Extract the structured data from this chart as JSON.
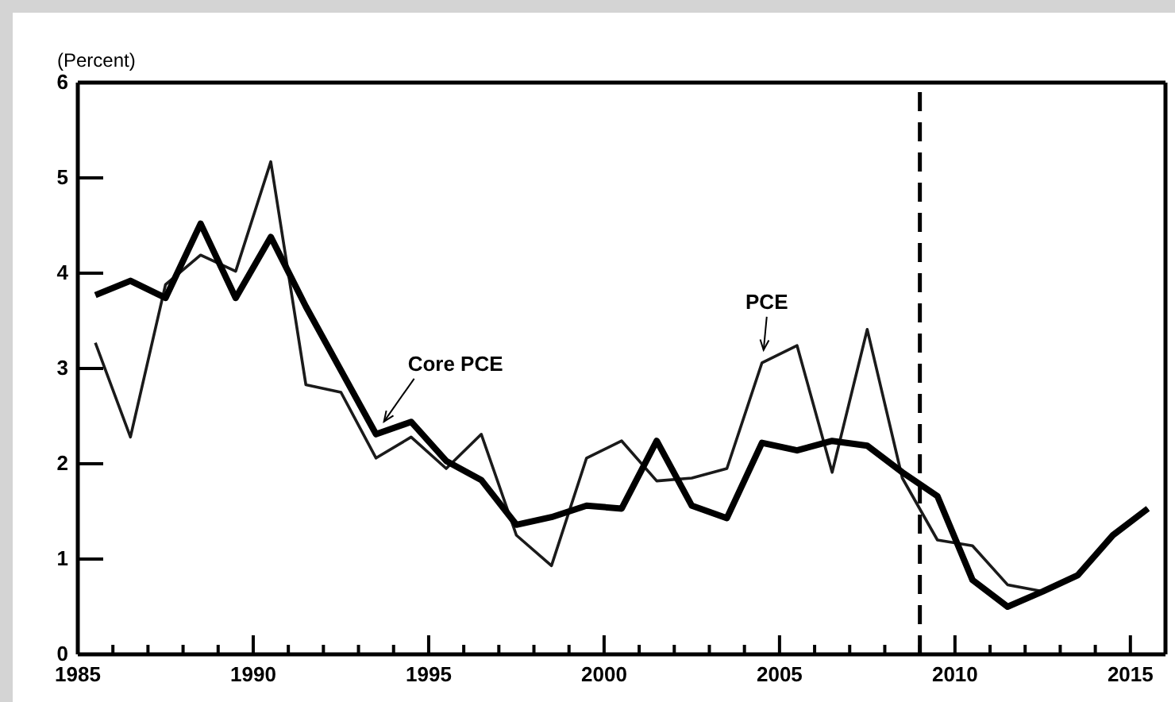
{
  "chart_data": {
    "type": "line",
    "ylabel": "(Percent)",
    "x": [
      1985.5,
      1986.5,
      1987.5,
      1988.5,
      1989.5,
      1990.5,
      1991.5,
      1992.5,
      1993.5,
      1994.5,
      1995.5,
      1996.5,
      1997.5,
      1998.5,
      1999.5,
      2000.5,
      2001.5,
      2002.5,
      2003.5,
      2004.5,
      2005.5,
      2006.5,
      2007.5,
      2008.5,
      2009.5,
      2010.5,
      2011.5,
      2012.5,
      2013.5,
      2014.5,
      2015.5
    ],
    "series": [
      {
        "name": "PCE",
        "color": "#1a1a1a",
        "values": [
          3.27,
          2.28,
          3.88,
          4.19,
          4.02,
          5.17,
          2.83,
          2.75,
          2.06,
          2.28,
          1.95,
          2.31,
          1.25,
          0.93,
          2.06,
          2.24,
          1.82,
          1.85,
          1.95,
          3.06,
          3.24,
          1.91,
          3.41,
          1.85,
          1.2,
          1.14,
          0.73,
          0.66,
          0.83,
          1.25,
          1.53
        ]
      },
      {
        "name": "Core PCE",
        "color": "#000000",
        "values": [
          3.77,
          3.92,
          3.74,
          4.52,
          3.74,
          4.38,
          3.65,
          2.98,
          2.31,
          2.44,
          2.03,
          1.83,
          1.36,
          1.44,
          1.56,
          1.53,
          2.24,
          1.56,
          1.43,
          2.22,
          2.14,
          2.24,
          2.19,
          1.91,
          1.66,
          0.78,
          0.5,
          0.66,
          0.83,
          1.25,
          1.53
        ]
      }
    ],
    "xlim": [
      1985,
      2016
    ],
    "xticks": [
      {
        "value": 1985,
        "label": "1985"
      },
      {
        "value": 1986,
        "label": null
      },
      {
        "value": 1987,
        "label": null
      },
      {
        "value": 1988,
        "label": null
      },
      {
        "value": 1989,
        "label": null
      },
      {
        "value": 1990,
        "label": "1990"
      },
      {
        "value": 1991,
        "label": null
      },
      {
        "value": 1992,
        "label": null
      },
      {
        "value": 1993,
        "label": null
      },
      {
        "value": 1994,
        "label": null
      },
      {
        "value": 1995,
        "label": "1995"
      },
      {
        "value": 1996,
        "label": null
      },
      {
        "value": 1997,
        "label": null
      },
      {
        "value": 1998,
        "label": null
      },
      {
        "value": 1999,
        "label": null
      },
      {
        "value": 2000,
        "label": "2000"
      },
      {
        "value": 2001,
        "label": null
      },
      {
        "value": 2002,
        "label": null
      },
      {
        "value": 2003,
        "label": null
      },
      {
        "value": 2004,
        "label": null
      },
      {
        "value": 2005,
        "label": "2005"
      },
      {
        "value": 2006,
        "label": null
      },
      {
        "value": 2007,
        "label": null
      },
      {
        "value": 2008,
        "label": null
      },
      {
        "value": 2009,
        "label": null
      },
      {
        "value": 2010,
        "label": "2010"
      },
      {
        "value": 2011,
        "label": null
      },
      {
        "value": 2012,
        "label": null
      },
      {
        "value": 2013,
        "label": null
      },
      {
        "value": 2014,
        "label": null
      },
      {
        "value": 2015,
        "label": "2015"
      }
    ],
    "ylim": [
      0,
      6
    ],
    "yticks": [
      0,
      1,
      2,
      3,
      4,
      5,
      6
    ],
    "ref_lines": [
      {
        "axis": "x",
        "value": 2009,
        "line_style": "dashed",
        "color": "#000000"
      }
    ],
    "grid": false,
    "legend": false,
    "marker": "none",
    "line_style": "solid"
  }
}
